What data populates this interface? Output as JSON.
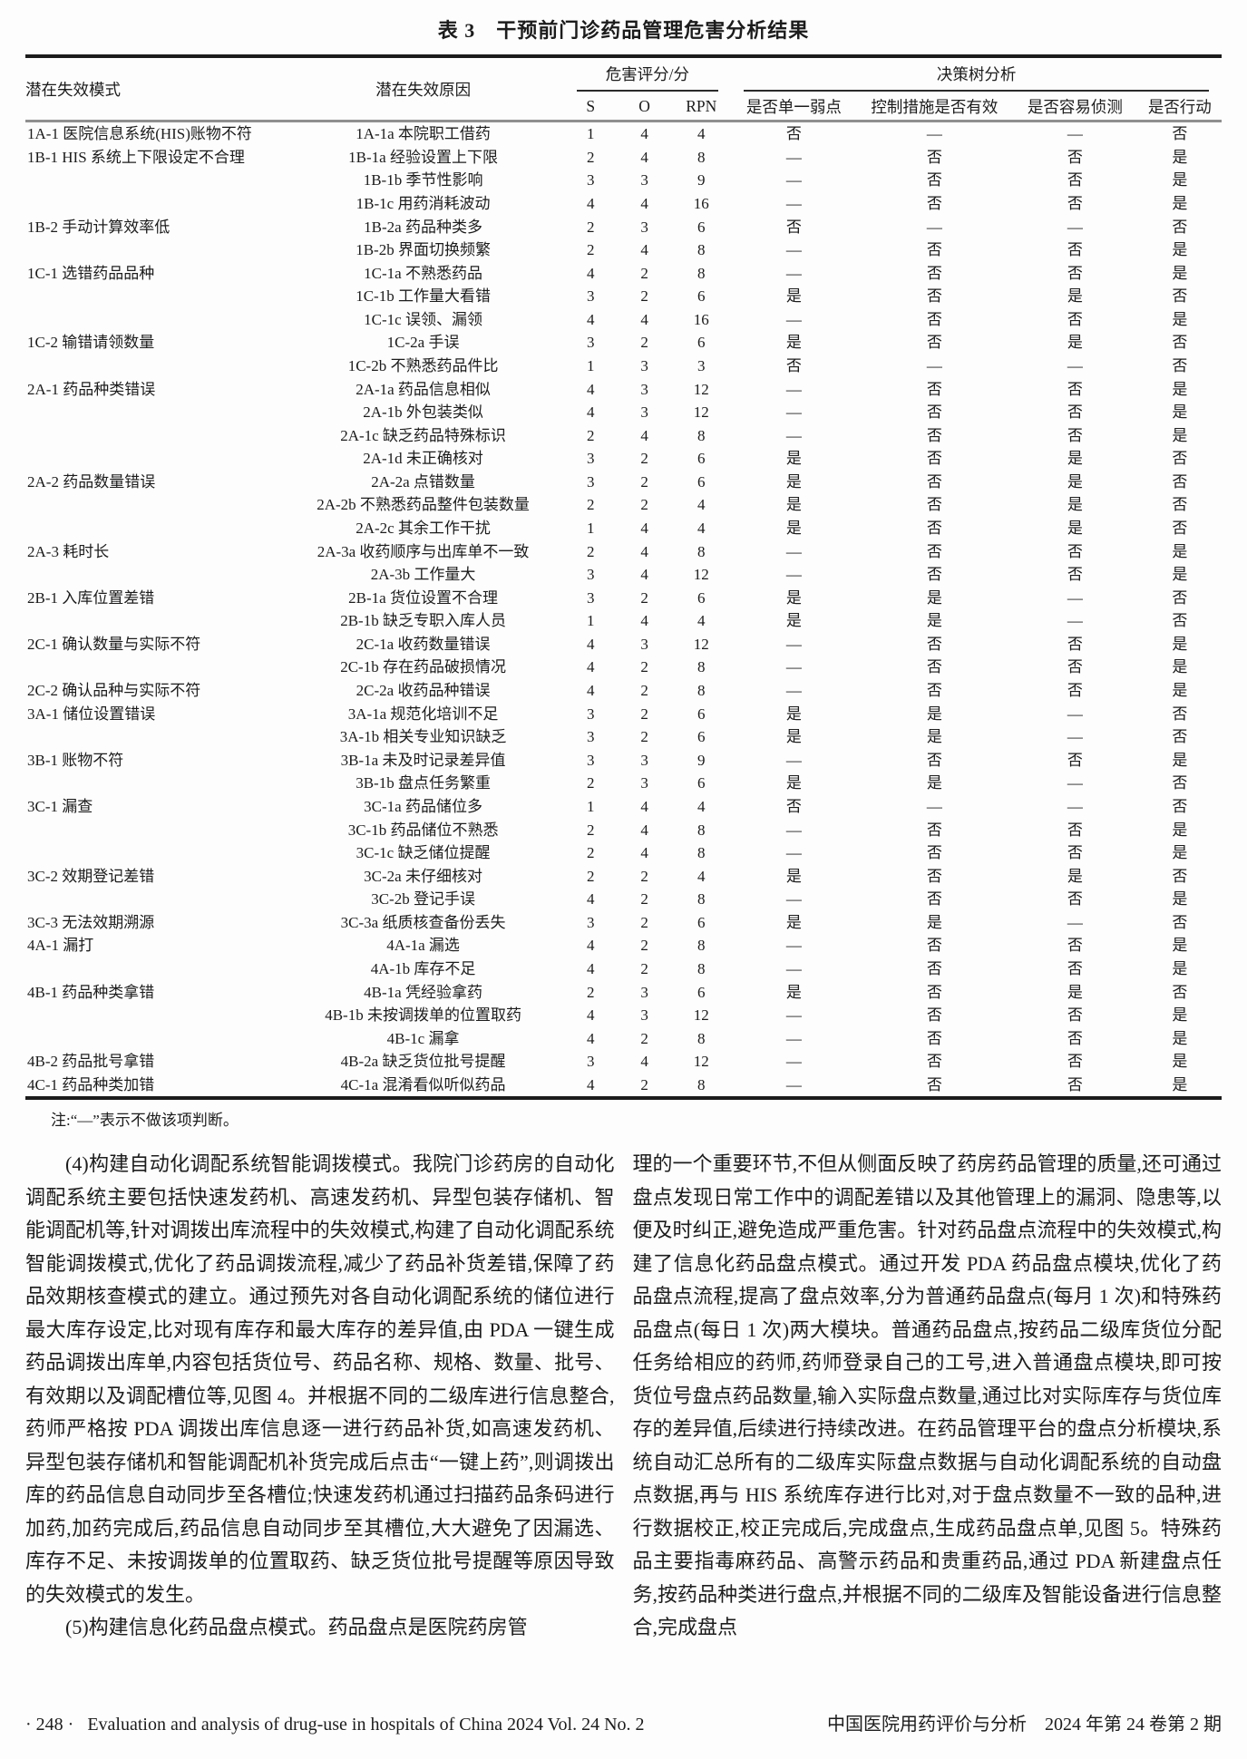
{
  "table": {
    "title": "表 3　干预前门诊药品管理危害分析结果",
    "headers": {
      "mode": "潜在失效模式",
      "cause": "潜在失效原因",
      "score_group": "危害评分/分",
      "s": "S",
      "o": "O",
      "rpn": "RPN",
      "tree_group": "决策树分析",
      "single_weakness": "是否单一弱点",
      "control_effective": "控制措施是否有效",
      "easy_detect": "是否容易侦测",
      "take_action": "是否行动"
    },
    "rows": [
      [
        "1A-1 医院信息系统(HIS)账物不符",
        "1A-1a 本院职工借药",
        "1",
        "4",
        "4",
        "否",
        "—",
        "—",
        "否"
      ],
      [
        "1B-1 HIS 系统上下限设定不合理",
        "1B-1a 经验设置上下限",
        "2",
        "4",
        "8",
        "—",
        "否",
        "否",
        "是"
      ],
      [
        "",
        "1B-1b 季节性影响",
        "3",
        "3",
        "9",
        "—",
        "否",
        "否",
        "是"
      ],
      [
        "",
        "1B-1c 用药消耗波动",
        "4",
        "4",
        "16",
        "—",
        "否",
        "否",
        "是"
      ],
      [
        "1B-2 手动计算效率低",
        "1B-2a 药品种类多",
        "2",
        "3",
        "6",
        "否",
        "—",
        "—",
        "否"
      ],
      [
        "",
        "1B-2b 界面切换频繁",
        "2",
        "4",
        "8",
        "—",
        "否",
        "否",
        "是"
      ],
      [
        "1C-1 选错药品品种",
        "1C-1a 不熟悉药品",
        "4",
        "2",
        "8",
        "—",
        "否",
        "否",
        "是"
      ],
      [
        "",
        "1C-1b 工作量大看错",
        "3",
        "2",
        "6",
        "是",
        "否",
        "是",
        "否"
      ],
      [
        "",
        "1C-1c 误领、漏领",
        "4",
        "4",
        "16",
        "—",
        "否",
        "否",
        "是"
      ],
      [
        "1C-2 输错请领数量",
        "1C-2a 手误",
        "3",
        "2",
        "6",
        "是",
        "否",
        "是",
        "否"
      ],
      [
        "",
        "1C-2b 不熟悉药品件比",
        "1",
        "3",
        "3",
        "否",
        "—",
        "—",
        "否"
      ],
      [
        "2A-1 药品种类错误",
        "2A-1a 药品信息相似",
        "4",
        "3",
        "12",
        "—",
        "否",
        "否",
        "是"
      ],
      [
        "",
        "2A-1b 外包装类似",
        "4",
        "3",
        "12",
        "—",
        "否",
        "否",
        "是"
      ],
      [
        "",
        "2A-1c 缺乏药品特殊标识",
        "2",
        "4",
        "8",
        "—",
        "否",
        "否",
        "是"
      ],
      [
        "",
        "2A-1d 未正确核对",
        "3",
        "2",
        "6",
        "是",
        "否",
        "是",
        "否"
      ],
      [
        "2A-2 药品数量错误",
        "2A-2a 点错数量",
        "3",
        "2",
        "6",
        "是",
        "否",
        "是",
        "否"
      ],
      [
        "",
        "2A-2b 不熟悉药品整件包装数量",
        "2",
        "2",
        "4",
        "是",
        "否",
        "是",
        "否"
      ],
      [
        "",
        "2A-2c 其余工作干扰",
        "1",
        "4",
        "4",
        "是",
        "否",
        "是",
        "否"
      ],
      [
        "2A-3 耗时长",
        "2A-3a 收药顺序与出库单不一致",
        "2",
        "4",
        "8",
        "—",
        "否",
        "否",
        "是"
      ],
      [
        "",
        "2A-3b 工作量大",
        "3",
        "4",
        "12",
        "—",
        "否",
        "否",
        "是"
      ],
      [
        "2B-1 入库位置差错",
        "2B-1a 货位设置不合理",
        "3",
        "2",
        "6",
        "是",
        "是",
        "—",
        "否"
      ],
      [
        "",
        "2B-1b 缺乏专职入库人员",
        "1",
        "4",
        "4",
        "是",
        "是",
        "—",
        "否"
      ],
      [
        "2C-1 确认数量与实际不符",
        "2C-1a 收药数量错误",
        "4",
        "3",
        "12",
        "—",
        "否",
        "否",
        "是"
      ],
      [
        "",
        "2C-1b 存在药品破损情况",
        "4",
        "2",
        "8",
        "—",
        "否",
        "否",
        "是"
      ],
      [
        "2C-2 确认品种与实际不符",
        "2C-2a 收药品种错误",
        "4",
        "2",
        "8",
        "—",
        "否",
        "否",
        "是"
      ],
      [
        "3A-1 储位设置错误",
        "3A-1a 规范化培训不足",
        "3",
        "2",
        "6",
        "是",
        "是",
        "—",
        "否"
      ],
      [
        "",
        "3A-1b 相关专业知识缺乏",
        "3",
        "2",
        "6",
        "是",
        "是",
        "—",
        "否"
      ],
      [
        "3B-1 账物不符",
        "3B-1a 未及时记录差异值",
        "3",
        "3",
        "9",
        "—",
        "否",
        "否",
        "是"
      ],
      [
        "",
        "3B-1b 盘点任务繁重",
        "2",
        "3",
        "6",
        "是",
        "是",
        "—",
        "否"
      ],
      [
        "3C-1 漏查",
        "3C-1a 药品储位多",
        "1",
        "4",
        "4",
        "否",
        "—",
        "—",
        "否"
      ],
      [
        "",
        "3C-1b 药品储位不熟悉",
        "2",
        "4",
        "8",
        "—",
        "否",
        "否",
        "是"
      ],
      [
        "",
        "3C-1c 缺乏储位提醒",
        "2",
        "4",
        "8",
        "—",
        "否",
        "否",
        "是"
      ],
      [
        "3C-2 效期登记差错",
        "3C-2a 未仔细核对",
        "2",
        "2",
        "4",
        "是",
        "否",
        "是",
        "否"
      ],
      [
        "",
        "3C-2b 登记手误",
        "4",
        "2",
        "8",
        "—",
        "否",
        "否",
        "是"
      ],
      [
        "3C-3 无法效期溯源",
        "3C-3a 纸质核查备份丢失",
        "3",
        "2",
        "6",
        "是",
        "是",
        "—",
        "否"
      ],
      [
        "4A-1 漏打",
        "4A-1a 漏选",
        "4",
        "2",
        "8",
        "—",
        "否",
        "否",
        "是"
      ],
      [
        "",
        "4A-1b 库存不足",
        "4",
        "2",
        "8",
        "—",
        "否",
        "否",
        "是"
      ],
      [
        "4B-1 药品种类拿错",
        "4B-1a 凭经验拿药",
        "2",
        "3",
        "6",
        "是",
        "否",
        "是",
        "否"
      ],
      [
        "",
        "4B-1b 未按调拨单的位置取药",
        "4",
        "3",
        "12",
        "—",
        "否",
        "否",
        "是"
      ],
      [
        "",
        "4B-1c 漏拿",
        "4",
        "2",
        "8",
        "—",
        "否",
        "否",
        "是"
      ],
      [
        "4B-2 药品批号拿错",
        "4B-2a 缺乏货位批号提醒",
        "3",
        "4",
        "12",
        "—",
        "否",
        "否",
        "是"
      ],
      [
        "4C-1 药品种类加错",
        "4C-1a 混淆看似听似药品",
        "4",
        "2",
        "8",
        "—",
        "否",
        "否",
        "是"
      ]
    ],
    "note": "注:“—”表示不做该项判断。"
  },
  "body": {
    "left_p1": "(4)构建自动化调配系统智能调拨模式。我院门诊药房的自动化调配系统主要包括快速发药机、高速发药机、异型包装存储机、智能调配机等,针对调拨出库流程中的失效模式,构建了自动化调配系统智能调拨模式,优化了药品调拨流程,减少了药品补货差错,保障了药品效期核查模式的建立。通过预先对各自动化调配系统的储位进行最大库存设定,比对现有库存和最大库存的差异值,由 PDA 一键生成药品调拨出库单,内容包括货位号、药品名称、规格、数量、批号、有效期以及调配槽位等,见图 4。并根据不同的二级库进行信息整合,药师严格按 PDA 调拨出库信息逐一进行药品补货,如高速发药机、异型包装存储机和智能调配机补货完成后点击“一键上药”,则调拨出库的药品信息自动同步至各槽位;快速发药机通过扫描药品条码进行加药,加药完成后,药品信息自动同步至其槽位,大大避免了因漏选、库存不足、未按调拨单的位置取药、缺乏货位批号提醒等原因导致的失效模式的发生。",
    "left_p2": "(5)构建信息化药品盘点模式。药品盘点是医院药房管",
    "right_p1": "理的一个重要环节,不但从侧面反映了药房药品管理的质量,还可通过盘点发现日常工作中的调配差错以及其他管理上的漏洞、隐患等,以便及时纠正,避免造成严重危害。针对药品盘点流程中的失效模式,构建了信息化药品盘点模式。通过开发 PDA 药品盘点模块,优化了药品盘点流程,提高了盘点效率,分为普通药品盘点(每月 1 次)和特殊药品盘点(每日 1 次)两大模块。普通药品盘点,按药品二级库货位分配任务给相应的药师,药师登录自己的工号,进入普通盘点模块,即可按货位号盘点药品数量,输入实际盘点数量,通过比对实际库存与货位库存的差异值,后续进行持续改进。在药品管理平台的盘点分析模块,系统自动汇总所有的二级库实际盘点数据与自动化调配系统的自动盘点数据,再与 HIS 系统库存进行比对,对于盘点数量不一致的品种,进行数据校正,校正完成后,完成盘点,生成药品盘点单,见图 5。特殊药品主要指毒麻药品、高警示药品和贵重药品,通过 PDA 新建盘点任务,按药品种类进行盘点,并根据不同的二级库及智能设备进行信息整合,完成盘点"
  },
  "footer": {
    "page_marker": "· 248 ·",
    "journal_en": "Evaluation and analysis of drug-use in hospitals of China 2024 Vol. 24 No. 2",
    "journal_cn": "中国医院用药评价与分析　2024 年第 24 卷第 2 期"
  }
}
